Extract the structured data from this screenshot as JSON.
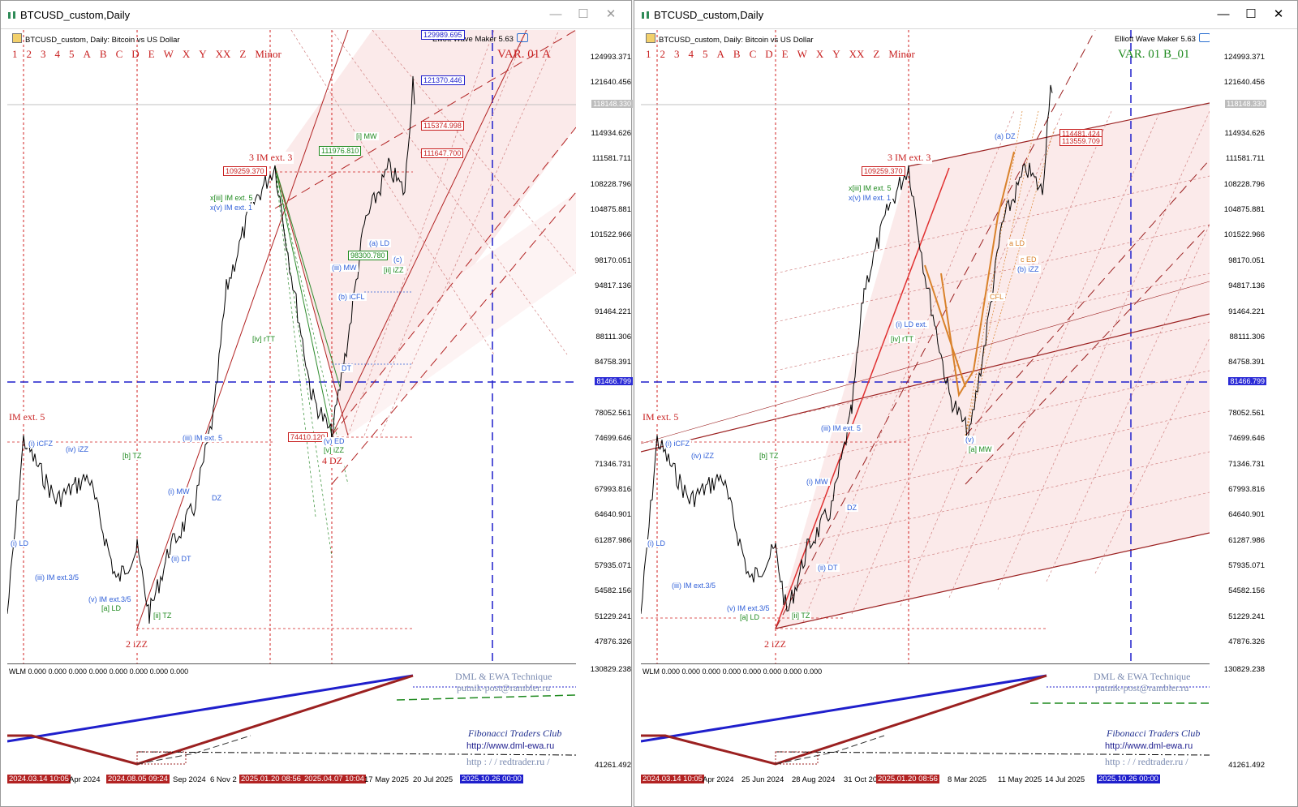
{
  "left": {
    "window_title": "BTCUSD_custom,Daily",
    "chart_header": "BTCUSD_custom, Daily:  Bitcoin vs US Dollar",
    "indicator_name": "Elliott Wave Maker 5.63",
    "wave_labels": [
      "1",
      "2",
      "3",
      "4",
      "5",
      "A",
      "B",
      "C",
      "D",
      "E",
      "W",
      "X",
      "Y",
      "XX",
      "Z",
      "Minor"
    ],
    "variant": "VAR. 01 A",
    "price_scale": [
      "124993.371",
      "121640.456",
      "118148.330",
      "114934.626",
      "111581.711",
      "108228.796",
      "104875.881",
      "101522.966",
      "98170.051",
      "94817.136",
      "91464.221",
      "88111.306",
      "84758.391",
      "81466.799",
      "78052.561",
      "74699.646",
      "71346.731",
      "67993.816",
      "64640.901",
      "61287.986",
      "57935.071",
      "54582.156",
      "51229.241",
      "47876.326"
    ],
    "price_current": "118148.330",
    "price_hline": "81466.799",
    "indicator_scale": [
      "130829.238",
      "41261.492"
    ],
    "wlm_text": "WLM 0.000 0.000 0.000 0.000 0.000 0.000 0.000 0.000",
    "time_labels": [
      "2024.03.14 10:05",
      "Apr 2024",
      "2024.08.05 09:24",
      "Sep 2024",
      "6 Nov 2",
      "2025.01.20 08:56",
      "2025.04.07 10:04",
      "17 May 2025",
      "20 Jul 2025",
      "2025.10.26 00:00"
    ],
    "boxes": [
      "129989.695",
      "121370.446",
      "115374.998",
      "111647.700",
      "111976.810",
      "109259.370",
      "98300.780",
      "74410.120"
    ],
    "annotations": [
      "3 IM ext. 3",
      "2 iZZ",
      "4 DZ",
      "IM ext. 5",
      "x[iii] IM ext. 5",
      "x(v) IM ext. 1",
      "(iii) IM ext. 5",
      "(iii) IM ext.3/5",
      "(v) IM ext.3/5",
      "[a] LD",
      "[ii] TZ",
      "[b] TZ",
      "(i) MW",
      "(ii) DT",
      "[i] MW",
      "(a) LD",
      "[ii] iZZ",
      "(v) ED",
      "[iv] rTT",
      "(iii) MW",
      "(b) iCFL",
      "(i) LD",
      "(i) iCFZ",
      "(iv) iZZ",
      "(c)",
      "DZ",
      "DT",
      "[v] iZZ"
    ]
  },
  "right": {
    "window_title": "BTCUSD_custom,Daily",
    "chart_header": "BTCUSD_custom, Daily:  Bitcoin vs US Dollar",
    "indicator_name": "Elliott Wave Maker 5.63",
    "wave_labels": [
      "1",
      "2",
      "3",
      "4",
      "5",
      "A",
      "B",
      "C",
      "D",
      "E",
      "W",
      "X",
      "Y",
      "XX",
      "Z",
      "Minor"
    ],
    "variant": "VAR. 01 B_01",
    "price_scale": [
      "124993.371",
      "121640.456",
      "118148.330",
      "114934.626",
      "111581.711",
      "108228.796",
      "104875.881",
      "101522.966",
      "98170.051",
      "94817.136",
      "91464.221",
      "88111.306",
      "84758.391",
      "81466.799",
      "78052.561",
      "74699.646",
      "71346.731",
      "67993.816",
      "64640.901",
      "61287.986",
      "57935.071",
      "54582.156",
      "51229.241",
      "47876.326"
    ],
    "price_current": "118148.330",
    "price_hline": "81466.799",
    "indicator_scale": [
      "130829.238",
      "41261.492"
    ],
    "wlm_text": "WLM 0.000 0.000 0.000 0.000 0.000 0.000 0.000 0.000",
    "time_labels": [
      "2024.03.14 10:05",
      "Apr 2024",
      "25 Jun 2024",
      "28 Aug 2024",
      "31 Oct 20",
      "2025.01.20 08:56",
      "8 Mar 2025",
      "11 May 2025",
      "14 Jul 2025",
      "2025.10.26 00:00"
    ],
    "boxes": [
      "109259.370",
      "114481.424",
      "113559.709"
    ],
    "annotations": [
      "3 IM ext. 3",
      "2 iZZ",
      "IM ext. 5",
      "x[iii] IM ext. 5",
      "x(v) IM ext. 1",
      "(iii) IM ext. 5",
      "(iii) IM ext.3/5",
      "(v) IM ext.3/5",
      "[a] LD",
      "[ii] TZ",
      "[b] TZ",
      "(i) MW",
      "(ii) DT",
      "[a] MW",
      "(a) DZ",
      "a LD",
      "c ED",
      "(b) iZZ",
      "[iv] rTT",
      "(i) LD",
      "(i) iCFZ",
      "(iv) iZZ",
      "(v)",
      "DZ",
      "CFL",
      "(i) LD ext."
    ]
  },
  "credits": {
    "technique": "DML & EWA Technique",
    "email": "putnik-post@rambler.ru",
    "club": "Fibonacci    Traders    Club",
    "site1": "http://www.dml-ewa.ru",
    "site2": "http : / / redtrader.ru /"
  },
  "colors": {
    "wave_red": "#c82020",
    "wave_blue": "#2f5fd8",
    "wave_green": "#1f8a1f",
    "wave_orange": "#d9822b",
    "channel_fill": "#fbeaea",
    "hline_blue": "#1f1fcc"
  }
}
